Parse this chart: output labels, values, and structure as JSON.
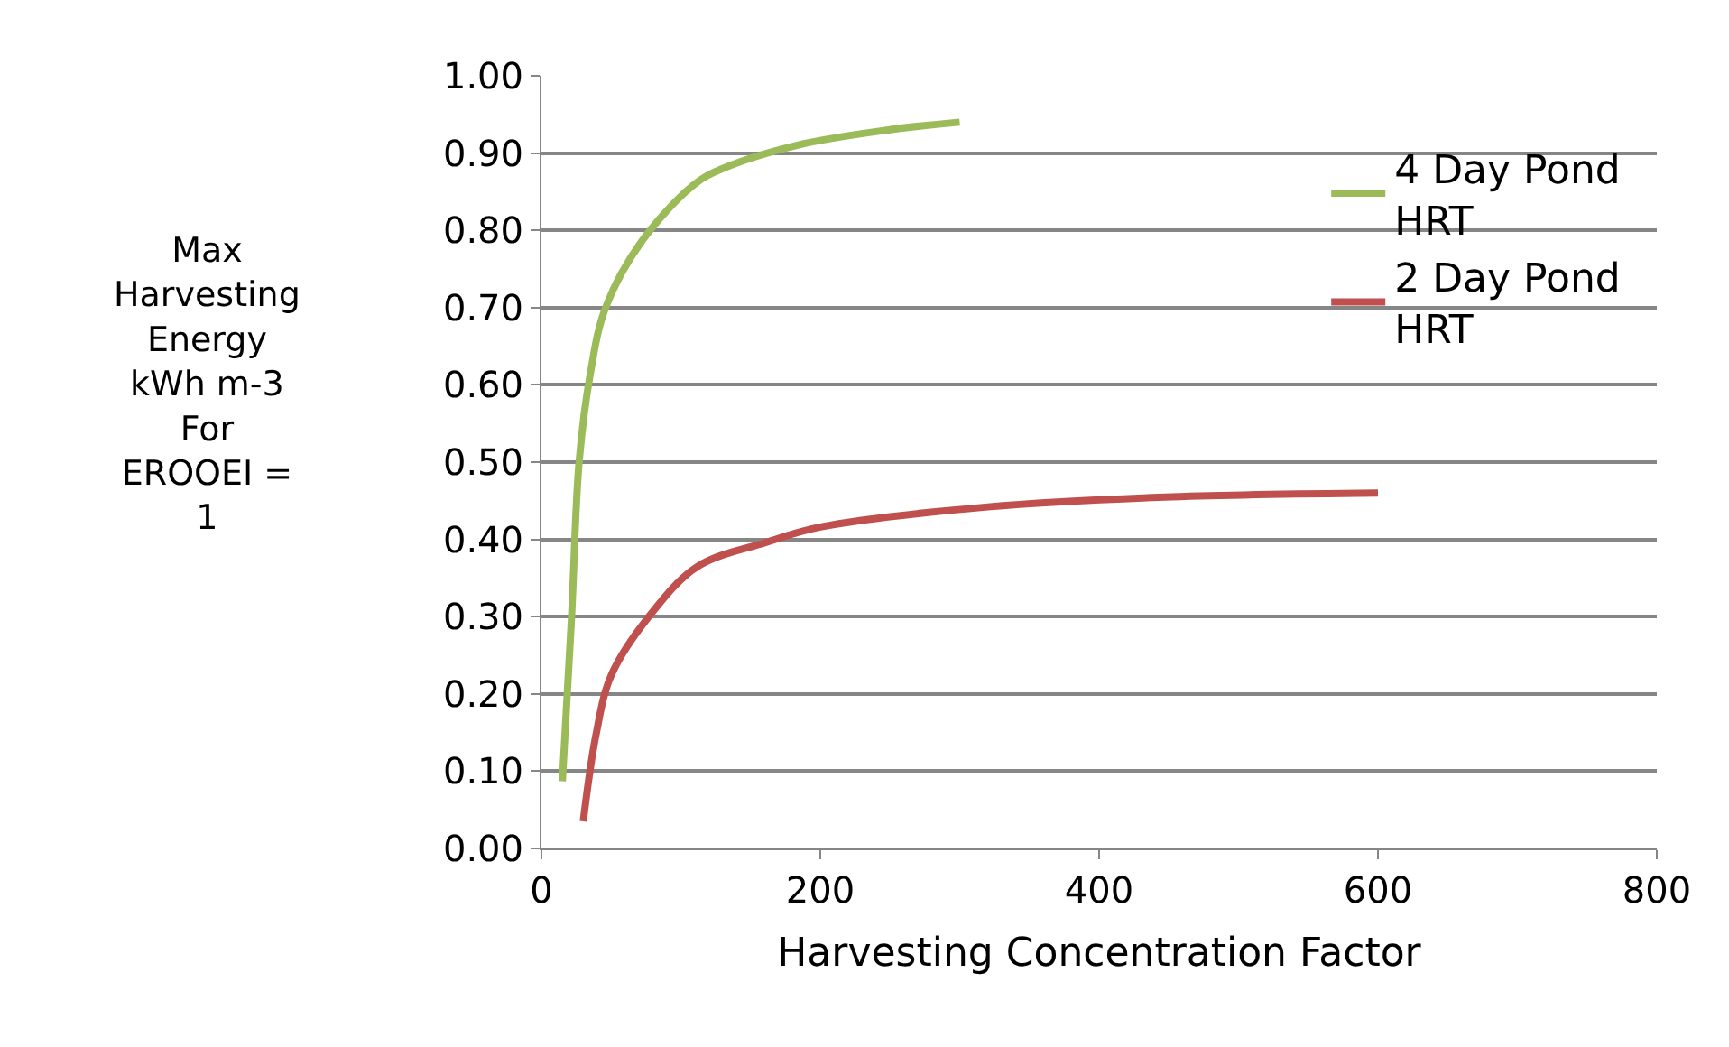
{
  "chart_data": {
    "type": "line",
    "xlabel": "Harvesting Concentration Factor",
    "ylabel": "Max Harvesting Energy kWh m-3 For EROOEI = 1",
    "xlim": [
      0,
      800
    ],
    "xticks": [
      0,
      200,
      400,
      600,
      800
    ],
    "ylim": [
      0,
      1
    ],
    "yticks": [
      {
        "value": 0,
        "label": "0.00"
      },
      {
        "value": 0.1,
        "label": "0.10"
      },
      {
        "value": 0.2,
        "label": "0.20"
      },
      {
        "value": 0.3,
        "label": "0.30"
      },
      {
        "value": 0.4,
        "label": "0.40"
      },
      {
        "value": 0.5,
        "label": "0.50"
      },
      {
        "value": 0.6,
        "label": "0.60"
      },
      {
        "value": 0.7,
        "label": "0.70"
      },
      {
        "value": 0.8,
        "label": "0.80"
      },
      {
        "value": 0.9,
        "label": "0.90"
      },
      {
        "value": 1,
        "label": "1.00"
      }
    ],
    "grid": "y",
    "legend": "top right",
    "marker": "none",
    "series": [
      {
        "name": "4 Day Pond HRT",
        "color": "#9bbb59",
        "x": [
          15,
          21.6,
          27,
          35,
          46,
          72,
          110,
          130,
          183,
          249,
          300
        ],
        "values": [
          0.087,
          0.3,
          0.5,
          0.614,
          0.7,
          0.786,
          0.86,
          0.88,
          0.91,
          0.93,
          0.94
        ]
      },
      {
        "name": "2 Day Pond HRT",
        "color": "#c0504d",
        "x": [
          30,
          39,
          50,
          77,
          112,
          161,
          200,
          320,
          452,
          600
        ],
        "values": [
          0.035,
          0.146,
          0.224,
          0.3,
          0.365,
          0.396,
          0.416,
          0.442,
          0.455,
          0.46
        ]
      }
    ]
  }
}
